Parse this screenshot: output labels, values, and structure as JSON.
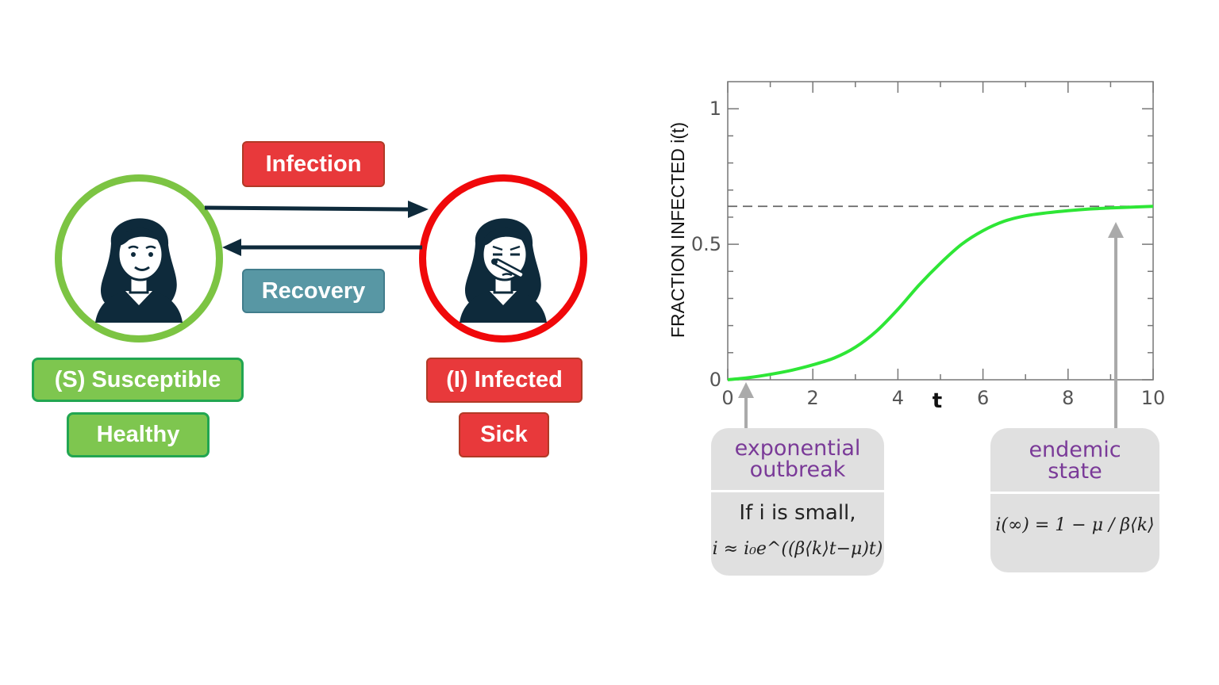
{
  "diagram": {
    "labels": {
      "infection": "Infection",
      "recovery": "Recovery",
      "susceptible": "(S) Susceptible",
      "healthy": "Healthy",
      "infected": "(I) Infected",
      "sick": "Sick"
    },
    "icons": {
      "healthy_person": "healthy-person-icon",
      "sick_person": "sick-person-icon"
    },
    "colors": {
      "red": "#e8393b",
      "teal": "#5897a4",
      "green": "#7ec64f",
      "green_border": "#22a651",
      "infected_ring": "#f0080a",
      "susceptible_ring": "#7cc443",
      "arrow": "#0e2a3b"
    }
  },
  "chart_data": {
    "type": "line",
    "ylabel": "FRACTION INFECTED i(t)",
    "xlabel": "t",
    "xlim": [
      0,
      10
    ],
    "ylim": [
      0,
      1.1
    ],
    "x_ticks": [
      "0",
      "2",
      "4",
      "6",
      "8",
      "10"
    ],
    "y_ticks": [
      "0",
      "0.5",
      "1"
    ],
    "endemic_level": 0.64,
    "series": [
      {
        "color": "#2ee636",
        "x": [
          0,
          0.5,
          1,
          1.5,
          2,
          2.5,
          3,
          3.5,
          4,
          4.5,
          5,
          5.5,
          6,
          6.5,
          7,
          7.5,
          8,
          8.5,
          9,
          9.5,
          10
        ],
        "y": [
          0.0,
          0.008,
          0.02,
          0.035,
          0.055,
          0.08,
          0.12,
          0.18,
          0.26,
          0.35,
          0.43,
          0.5,
          0.55,
          0.585,
          0.605,
          0.616,
          0.624,
          0.63,
          0.634,
          0.637,
          0.64
        ]
      }
    ],
    "annotations": [
      {
        "title_line1": "exponential",
        "title_line2": "outbreak",
        "body_line1": "If i is small,",
        "formula": "i ≈ i₀e^((β⟨k⟩t−μ)t)",
        "points_to_x": 0.2
      },
      {
        "title_line1": "endemic",
        "title_line2": "state",
        "formula": "i(∞) = 1 − μ / β⟨k⟩",
        "points_to_x": 9.2
      }
    ]
  }
}
